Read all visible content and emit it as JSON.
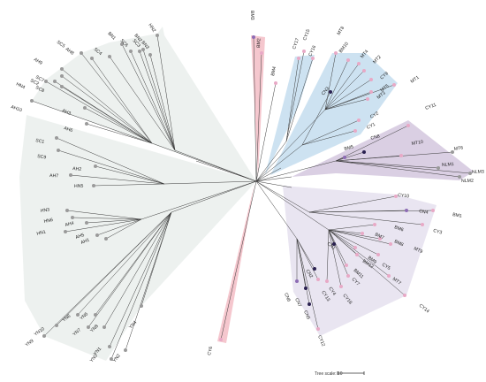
{
  "colors": {
    "grey_clade": "#e7ece9",
    "red_clade": "#f2b4bd",
    "blue_clade": "#bcd8ec",
    "purple_clade": "#cdbfd9",
    "lilac_clade": "#e2dcec",
    "branch": "#3a3a3a",
    "tip_grey": "#9a9a9a",
    "tip_pink": "#e8a9c6",
    "tip_purple": "#8d6cb4",
    "tip_dark": "#2a2050"
  },
  "scale_bar": {
    "label": "Tree scale: 10"
  },
  "clades": [
    {
      "id": "grey",
      "color_key": "grey_clade",
      "tips": [
        {
          "label": "AH10",
          "tip": "grey"
        },
        {
          "label": "HN4",
          "tip": "grey"
        },
        {
          "label": "AH9",
          "tip": "grey"
        },
        {
          "label": "SC5",
          "tip": "grey"
        },
        {
          "label": "AH8",
          "tip": "grey"
        },
        {
          "label": "SC4",
          "tip": "grey"
        },
        {
          "label": "BN1",
          "tip": "grey"
        },
        {
          "label": "SC6",
          "tip": "grey"
        },
        {
          "label": "SC3",
          "tip": "grey"
        },
        {
          "label": "BN2",
          "tip": "grey"
        },
        {
          "label": "BN3",
          "tip": "grey"
        },
        {
          "label": "HN2",
          "tip": "grey"
        },
        {
          "label": "SC7",
          "tip": "grey"
        },
        {
          "label": "SC8",
          "tip": "grey"
        },
        {
          "label": "SC2",
          "tip": "grey"
        },
        {
          "label": "AH3",
          "tip": "grey"
        },
        {
          "label": "AH6",
          "tip": "grey"
        },
        {
          "label": "SC1",
          "tip": "grey"
        },
        {
          "label": "SC9",
          "tip": "grey"
        },
        {
          "label": "AH2",
          "tip": "grey"
        },
        {
          "label": "AH7",
          "tip": "grey"
        },
        {
          "label": "HN5",
          "tip": "grey"
        },
        {
          "label": "HN3",
          "tip": "grey"
        },
        {
          "label": "HN6",
          "tip": "grey"
        },
        {
          "label": "HN1",
          "tip": "grey"
        },
        {
          "label": "AH4",
          "tip": "grey"
        },
        {
          "label": "AH5",
          "tip": "grey"
        },
        {
          "label": "AH1",
          "tip": "grey"
        },
        {
          "label": "YN9",
          "tip": "grey"
        },
        {
          "label": "YN10",
          "tip": "grey"
        },
        {
          "label": "YN6",
          "tip": "grey"
        },
        {
          "label": "YN7",
          "tip": "grey"
        },
        {
          "label": "YN5",
          "tip": "grey"
        },
        {
          "label": "YN8",
          "tip": "grey"
        },
        {
          "label": "YN1",
          "tip": "grey"
        },
        {
          "label": "YN3",
          "tip": "grey"
        },
        {
          "label": "YN2",
          "tip": "grey"
        },
        {
          "label": "YN4",
          "tip": "grey"
        }
      ]
    },
    {
      "id": "red_top",
      "color_key": "red_clade",
      "tips": [
        {
          "label": "BM3",
          "tip": "purple"
        },
        {
          "label": "BM2",
          "tip": "pink"
        }
      ]
    },
    {
      "id": "single_bm4",
      "color_key": null,
      "tips": [
        {
          "label": "BM4",
          "tip": "pink"
        }
      ]
    },
    {
      "id": "blue_small",
      "color_key": "blue_clade",
      "tips": [
        {
          "label": "CY17",
          "tip": "pink"
        },
        {
          "label": "CY15",
          "tip": "pink"
        },
        {
          "label": "CY16",
          "tip": "pink"
        }
      ]
    },
    {
      "id": "blue",
      "color_key": "blue_clade",
      "tips": [
        {
          "label": "MT8",
          "tip": "pink"
        },
        {
          "label": "BM10",
          "tip": "pink"
        },
        {
          "label": "MT4",
          "tip": "pink"
        },
        {
          "label": "MT2",
          "tip": "pink"
        },
        {
          "label": "CN3",
          "tip": "dark"
        },
        {
          "label": "CY9",
          "tip": "pink"
        },
        {
          "label": "MT3",
          "tip": "pink"
        },
        {
          "label": "MT5",
          "tip": "pink"
        },
        {
          "label": "MT1",
          "tip": "pink"
        },
        {
          "label": "CY2",
          "tip": "pink"
        },
        {
          "label": "CY1",
          "tip": "pink"
        }
      ]
    },
    {
      "id": "purple",
      "color_key": "purple_clade",
      "tips": [
        {
          "label": "CY11",
          "tip": "pink"
        },
        {
          "label": "CN8",
          "tip": "dark"
        },
        {
          "label": "BM5",
          "tip": "purple"
        },
        {
          "label": "MT10",
          "tip": "pink"
        },
        {
          "label": "MT6",
          "tip": "grey"
        },
        {
          "label": "NLM1",
          "tip": "grey"
        },
        {
          "label": "NLM3",
          "tip": "grey"
        },
        {
          "label": "NLM2",
          "tip": "grey"
        }
      ]
    },
    {
      "id": "lilac",
      "color_key": "lilac_clade",
      "tips": [
        {
          "label": "CY10",
          "tip": "pink"
        },
        {
          "label": "BM1",
          "tip": "pink"
        },
        {
          "label": "CN4",
          "tip": "purple"
        },
        {
          "label": "CY3",
          "tip": "pink"
        },
        {
          "label": "BM6",
          "tip": "pink"
        },
        {
          "label": "BM7",
          "tip": "pink"
        },
        {
          "label": "MT9",
          "tip": "pink"
        },
        {
          "label": "BM8",
          "tip": "pink"
        },
        {
          "label": "CY5",
          "tip": "pink"
        },
        {
          "label": "BM12",
          "tip": "pink"
        },
        {
          "label": "BM9",
          "tip": "pink"
        },
        {
          "label": "MT7",
          "tip": "pink"
        },
        {
          "label": "CY14",
          "tip": "pink"
        },
        {
          "label": "CY7",
          "tip": "pink"
        },
        {
          "label": "BM11",
          "tip": "pink"
        },
        {
          "label": "CY18",
          "tip": "pink"
        },
        {
          "label": "CN1",
          "tip": "dark"
        },
        {
          "label": "CY4",
          "tip": "pink"
        },
        {
          "label": "CY13",
          "tip": "pink"
        },
        {
          "label": "CN2",
          "tip": "dark"
        },
        {
          "label": "CN6",
          "tip": "purple"
        },
        {
          "label": "CN7",
          "tip": "dark"
        },
        {
          "label": "CN5",
          "tip": "dark"
        },
        {
          "label": "CY12",
          "tip": "pink"
        }
      ]
    },
    {
      "id": "red_bottom",
      "color_key": "red_clade",
      "tips": [
        {
          "label": "CY6",
          "tip": "pink"
        }
      ]
    }
  ]
}
